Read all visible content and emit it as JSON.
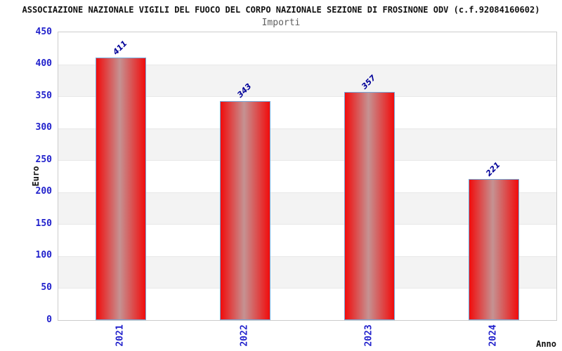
{
  "chart_data": {
    "type": "bar",
    "title": "ASSOCIAZIONE NAZIONALE VIGILI DEL FUOCO DEL CORPO NAZIONALE SEZIONE DI FROSINONE ODV (c.f.92084160602)",
    "subtitle": "Importi",
    "categories": [
      "2021",
      "2022",
      "2023",
      "2024"
    ],
    "values": [
      411,
      343,
      357,
      221
    ],
    "xlabel": "Anno",
    "ylabel": "Euro",
    "ylim": [
      0,
      450
    ],
    "ytick_step": 50,
    "yticks": [
      0,
      50,
      100,
      150,
      200,
      250,
      300,
      350,
      400,
      450
    ],
    "grid": "alternating-horizontal-bands",
    "legend_position": "none",
    "bar_value_labels_rotation_deg": -45,
    "x_tick_rotation_deg": -90
  },
  "colors": {
    "background": "#ffffff",
    "plot_border": "#cccccc",
    "band_gray": "#f3f3f3",
    "gridline": "#e8e8e8",
    "bar_red_edge": "#f10c0c",
    "bar_red_mid": "#c59292",
    "bar_border_blue": "#74a7d8",
    "axis_tick_label_blue": "#2222cc",
    "value_label_navy": "#000099",
    "title_black": "#111111",
    "subtitle_gray": "#606060"
  }
}
